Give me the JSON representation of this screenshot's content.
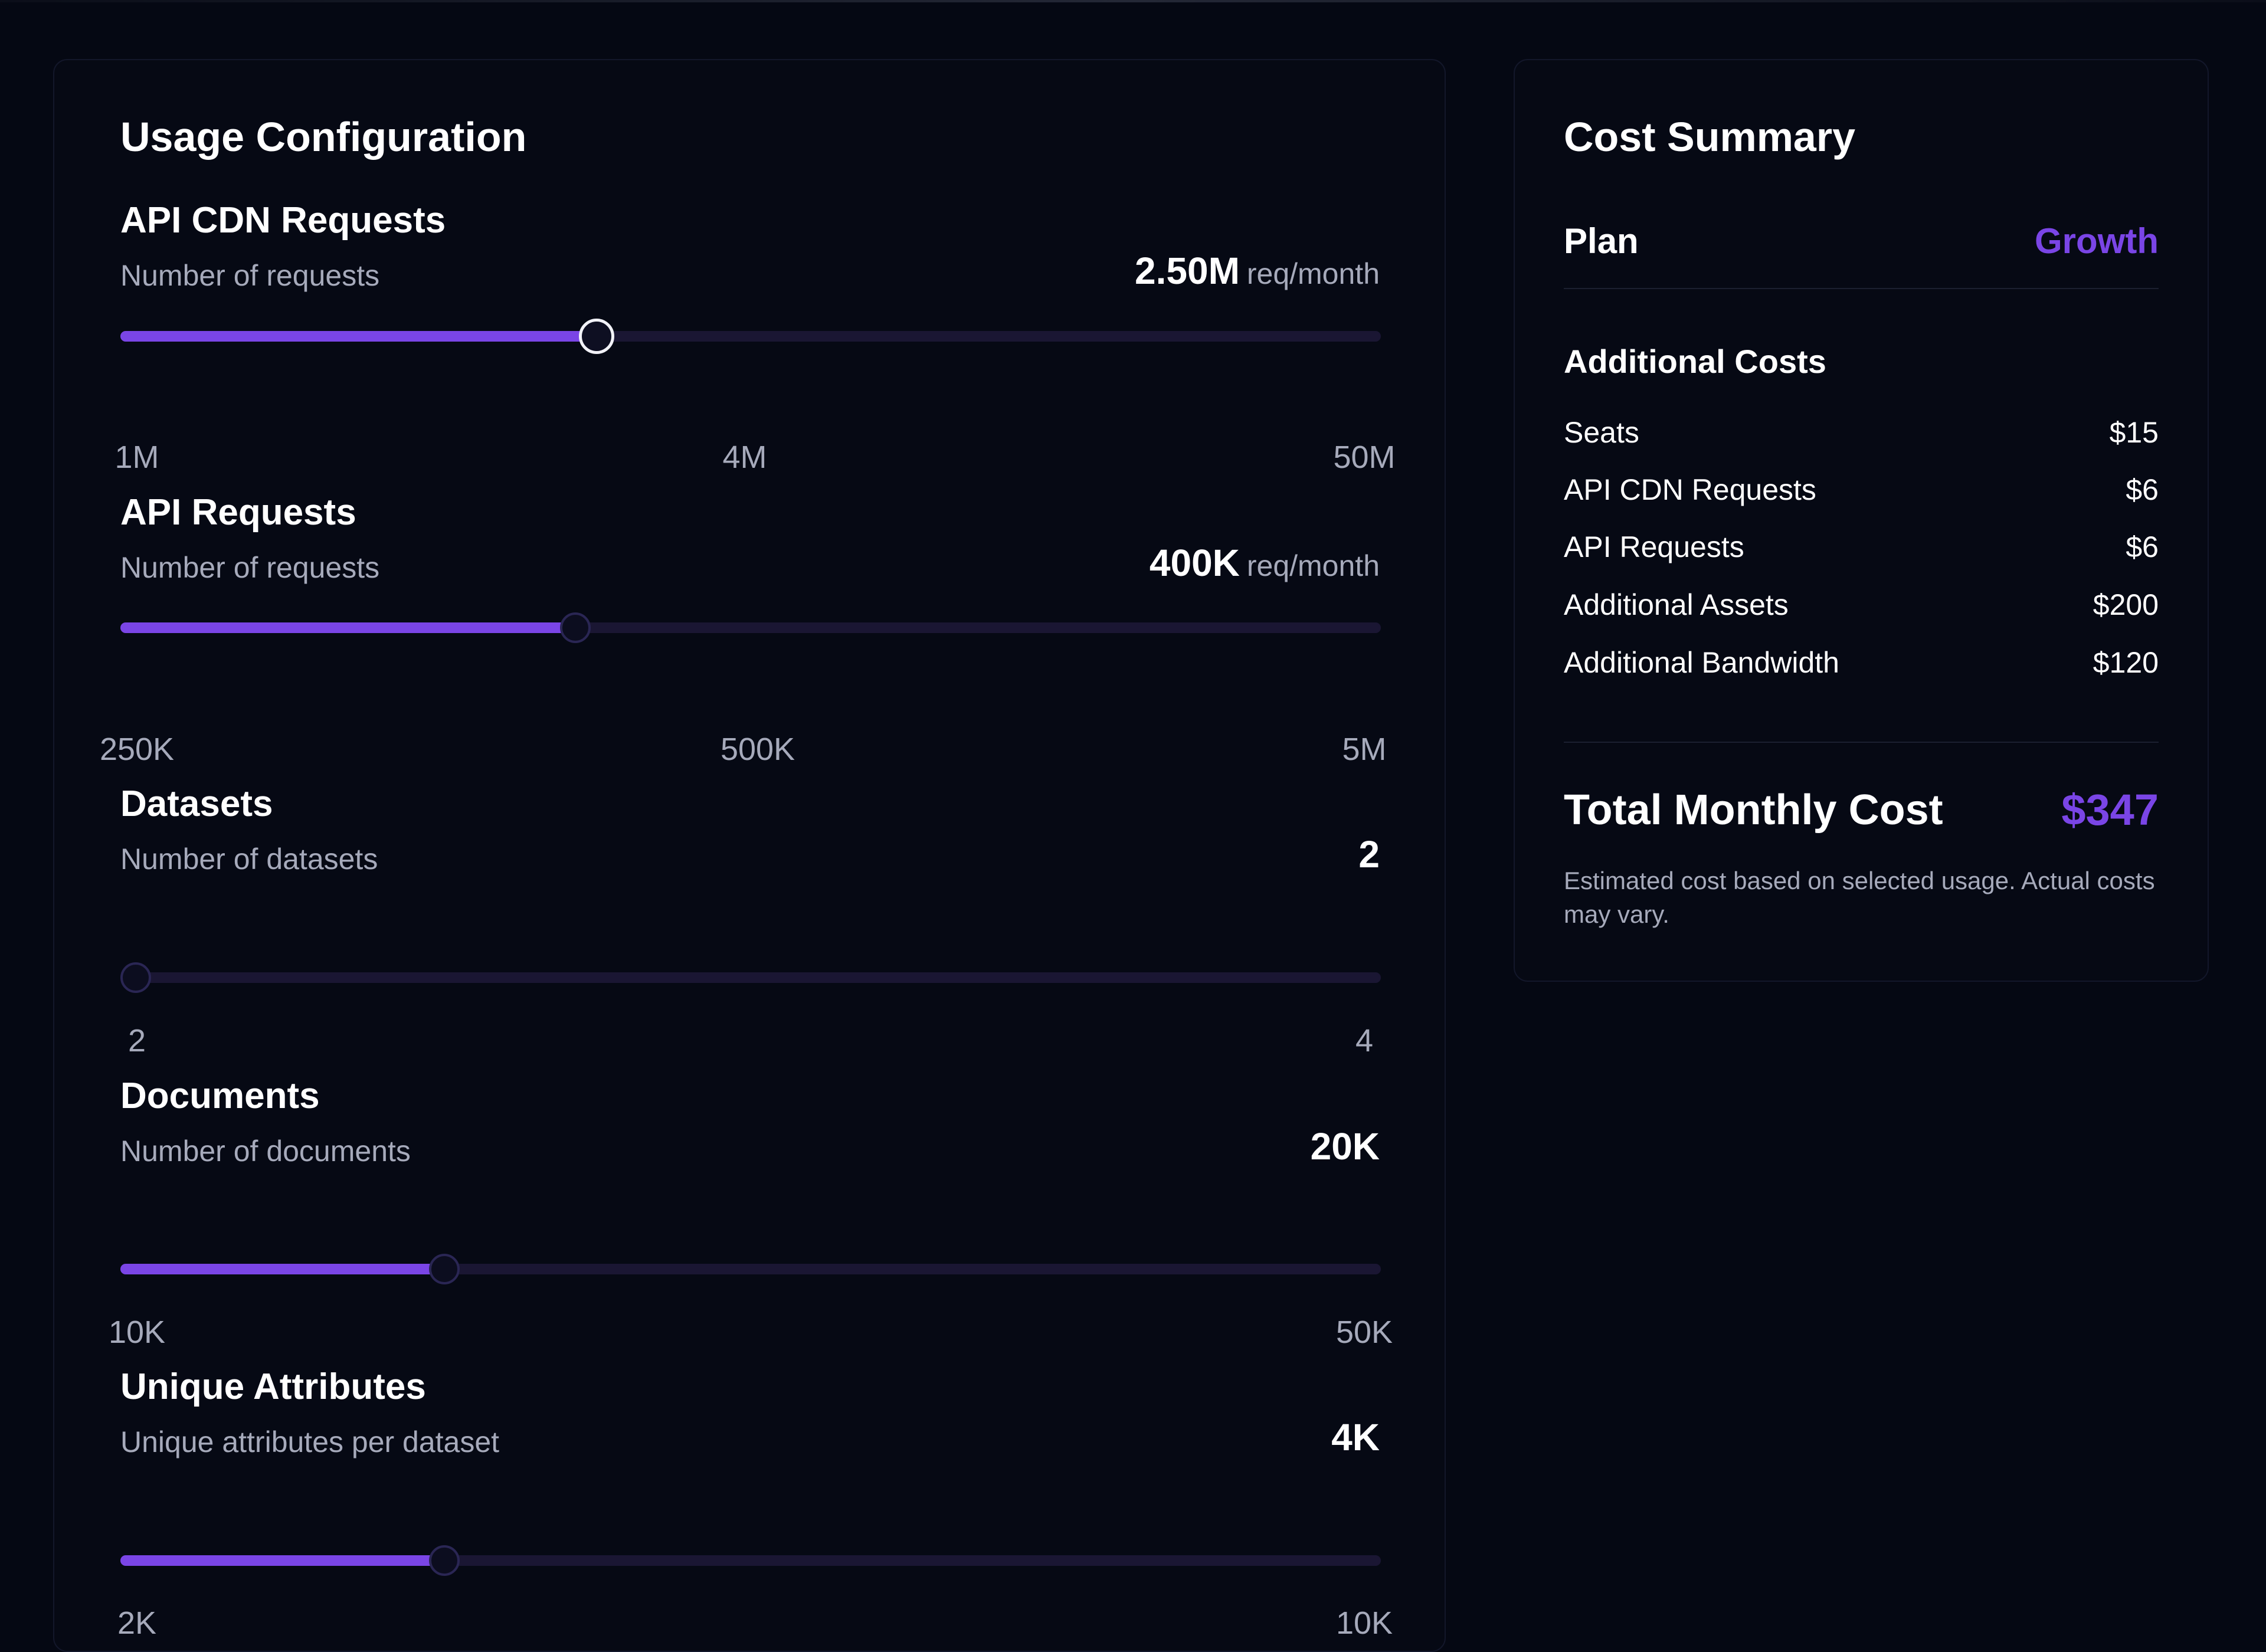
{
  "usage": {
    "title": "Usage Configuration",
    "sliders": [
      {
        "title": "API CDN Requests",
        "description": "Number of requests",
        "value": "2.50M",
        "unit": "req/month",
        "ticks": [
          "1M",
          "4M",
          "50M"
        ],
        "fill_fraction": 0.378
      },
      {
        "title": "API Requests",
        "description": "Number of requests",
        "value": "400K",
        "unit": "req/month",
        "ticks": [
          "250K",
          "500K",
          "5M"
        ],
        "fill_fraction": 0.361
      },
      {
        "title": "Datasets",
        "description": "Number of datasets",
        "value": "2",
        "unit": "",
        "ticks": [
          "2",
          "4"
        ],
        "fill_fraction": 0.0
      },
      {
        "title": "Documents",
        "description": "Number of documents",
        "value": "20K",
        "unit": "",
        "ticks": [
          "10K",
          "50K"
        ],
        "fill_fraction": 0.257
      },
      {
        "title": "Unique Attributes",
        "description": "Unique attributes per dataset",
        "value": "4K",
        "unit": "",
        "ticks": [
          "2K",
          "10K"
        ],
        "fill_fraction": 0.257
      }
    ]
  },
  "cost": {
    "title": "Cost Summary",
    "plan_label": "Plan",
    "plan_value": "Growth",
    "additional_title": "Additional Costs",
    "items": [
      {
        "label": "Seats",
        "amount": "$15"
      },
      {
        "label": "API CDN Requests",
        "amount": "$6"
      },
      {
        "label": "API Requests",
        "amount": "$6"
      },
      {
        "label": "Additional Assets",
        "amount": "$200"
      },
      {
        "label": "Additional Bandwidth",
        "amount": "$120"
      }
    ],
    "total_label": "Total Monthly Cost",
    "total_value": "$347",
    "note": "Estimated cost based on selected usage. Actual costs may vary."
  },
  "colors": {
    "accent": "#7a45e6",
    "background": "#050813",
    "card": "#060914",
    "muted_text": "#a6aabb"
  }
}
